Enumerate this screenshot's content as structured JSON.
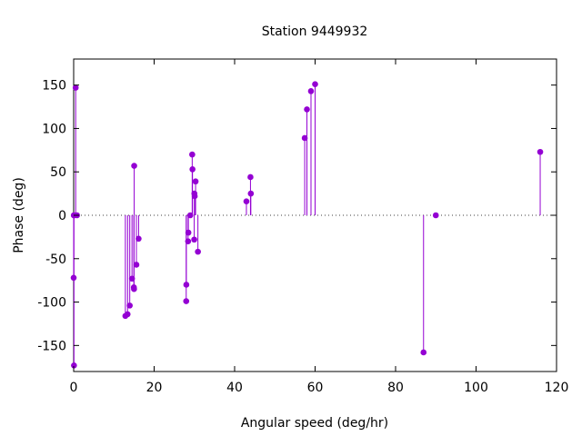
{
  "chart_data": {
    "type": "scatter",
    "style": "impulses-with-points",
    "title": "Station 9449932",
    "xlabel": "Angular speed (deg/hr)",
    "ylabel": "Phase (deg)",
    "xlim": [
      0,
      120
    ],
    "ylim": [
      -180,
      180
    ],
    "xticks": [
      0,
      20,
      40,
      60,
      80,
      100,
      120
    ],
    "yticks": [
      -150,
      -100,
      -50,
      0,
      50,
      100,
      150
    ],
    "zero_line": "dotted",
    "grid": false,
    "legend": "none",
    "series": [
      {
        "color": "#9400d3",
        "points": [
          {
            "x": 0.0,
            "y": -72
          },
          {
            "x": 0.04,
            "y": 0
          },
          {
            "x": 0.08,
            "y": -173
          },
          {
            "x": 0.12,
            "y": 0
          },
          {
            "x": 0.5,
            "y": 147
          },
          {
            "x": 0.82,
            "y": 0
          },
          {
            "x": 12.85,
            "y": -116
          },
          {
            "x": 13.4,
            "y": -114
          },
          {
            "x": 13.94,
            "y": -104
          },
          {
            "x": 14.5,
            "y": -73
          },
          {
            "x": 14.96,
            "y": -83
          },
          {
            "x": 15.0,
            "y": -85
          },
          {
            "x": 15.04,
            "y": 57
          },
          {
            "x": 15.59,
            "y": -57
          },
          {
            "x": 16.14,
            "y": -27
          },
          {
            "x": 27.97,
            "y": -99
          },
          {
            "x": 28.0,
            "y": -80
          },
          {
            "x": 28.44,
            "y": -30
          },
          {
            "x": 28.51,
            "y": -20
          },
          {
            "x": 28.98,
            "y": 0
          },
          {
            "x": 29.46,
            "y": 70
          },
          {
            "x": 29.53,
            "y": 53
          },
          {
            "x": 29.96,
            "y": -28
          },
          {
            "x": 30.0,
            "y": 25
          },
          {
            "x": 30.08,
            "y": 22
          },
          {
            "x": 30.3,
            "y": 39
          },
          {
            "x": 30.88,
            "y": -42
          },
          {
            "x": 42.93,
            "y": 16
          },
          {
            "x": 43.94,
            "y": 44
          },
          {
            "x": 44.03,
            "y": 25
          },
          {
            "x": 57.42,
            "y": 89
          },
          {
            "x": 57.97,
            "y": 122
          },
          {
            "x": 58.98,
            "y": 143
          },
          {
            "x": 60.0,
            "y": 151
          },
          {
            "x": 86.95,
            "y": -158
          },
          {
            "x": 90.0,
            "y": 0
          },
          {
            "x": 115.94,
            "y": 73
          }
        ]
      }
    ]
  }
}
